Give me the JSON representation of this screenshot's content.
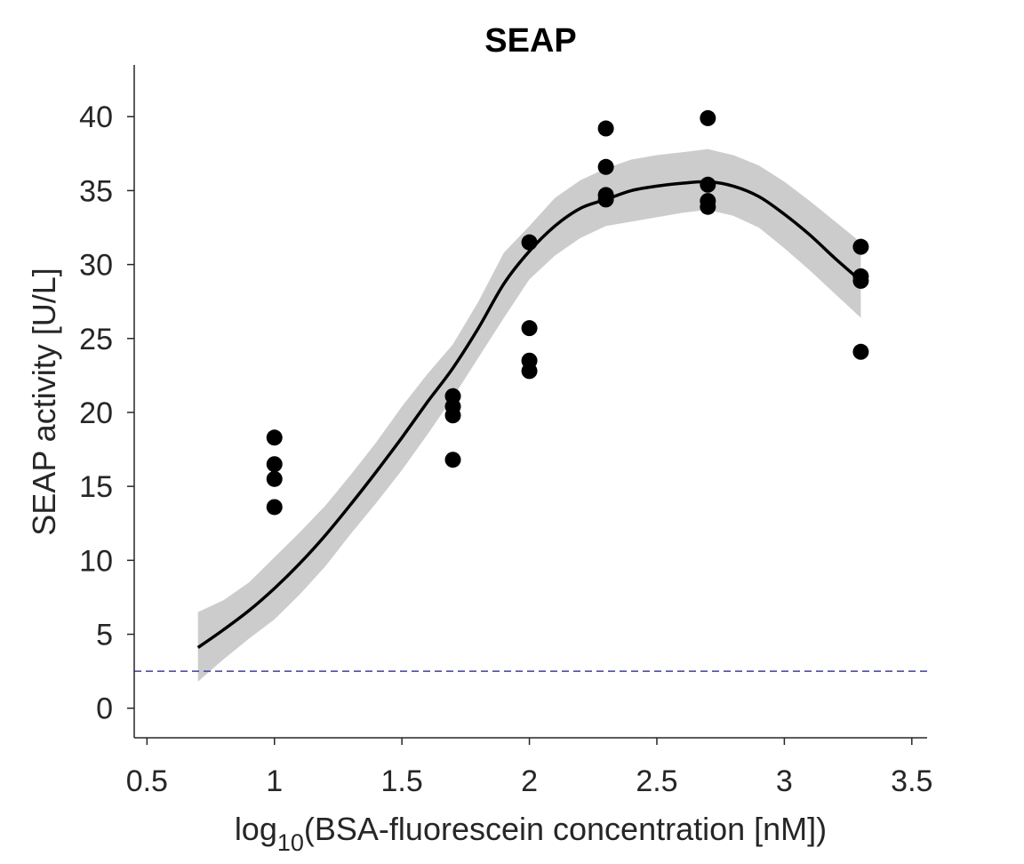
{
  "chart_data": {
    "type": "scatter",
    "title": "SEAP",
    "xlabel_prefix": "log",
    "xlabel_subscript": "10",
    "xlabel_suffix": "(BSA-fluorescein concentration [nM])",
    "ylabel": "SEAP activity [U/L]",
    "xlim": [
      0.45,
      3.56
    ],
    "ylim": [
      -2,
      43.5
    ],
    "xticks": [
      0.5,
      1,
      1.5,
      2,
      2.5,
      3,
      3.5
    ],
    "xtick_labels": [
      "0.5",
      "1",
      "1.5",
      "2",
      "2.5",
      "3",
      "3.5"
    ],
    "yticks": [
      0,
      5,
      10,
      15,
      20,
      25,
      30,
      35,
      40
    ],
    "ytick_labels": [
      "0",
      "5",
      "10",
      "15",
      "20",
      "25",
      "30",
      "35",
      "40"
    ],
    "grid": false,
    "series": [
      {
        "kind": "points",
        "color": "#000000",
        "points": [
          [
            1.0,
            18.3
          ],
          [
            1.0,
            16.5
          ],
          [
            1.0,
            15.5
          ],
          [
            1.0,
            13.6
          ],
          [
            1.7,
            21.1
          ],
          [
            1.7,
            20.4
          ],
          [
            1.7,
            19.8
          ],
          [
            1.7,
            16.8
          ],
          [
            2.0,
            31.5
          ],
          [
            2.0,
            25.7
          ],
          [
            2.0,
            23.5
          ],
          [
            2.0,
            22.8
          ],
          [
            2.3,
            39.2
          ],
          [
            2.3,
            36.6
          ],
          [
            2.3,
            34.7
          ],
          [
            2.3,
            34.4
          ],
          [
            2.7,
            39.9
          ],
          [
            2.7,
            35.4
          ],
          [
            2.7,
            34.3
          ],
          [
            2.7,
            33.9
          ],
          [
            3.3,
            31.2
          ],
          [
            3.3,
            29.2
          ],
          [
            3.3,
            28.9
          ],
          [
            3.3,
            24.1
          ]
        ]
      },
      {
        "kind": "fit-curve",
        "color": "#000000",
        "x": [
          0.7,
          0.8,
          0.9,
          1.0,
          1.1,
          1.2,
          1.3,
          1.4,
          1.5,
          1.6,
          1.7,
          1.8,
          1.9,
          2.0,
          2.1,
          2.2,
          2.3,
          2.4,
          2.5,
          2.6,
          2.7,
          2.8,
          2.9,
          3.0,
          3.1,
          3.2,
          3.3
        ],
        "y": [
          4.1,
          5.3,
          6.6,
          8.1,
          9.8,
          11.7,
          13.8,
          16.0,
          18.3,
          20.7,
          23.0,
          25.7,
          28.7,
          30.9,
          32.6,
          33.8,
          34.4,
          35.0,
          35.3,
          35.5,
          35.6,
          35.3,
          34.6,
          33.4,
          32.0,
          30.4,
          28.9
        ]
      },
      {
        "kind": "confidence-band",
        "color": "#cccccc",
        "x": [
          0.7,
          0.8,
          0.9,
          1.0,
          1.1,
          1.2,
          1.3,
          1.4,
          1.5,
          1.6,
          1.7,
          1.8,
          1.9,
          2.0,
          2.1,
          2.2,
          2.3,
          2.4,
          2.5,
          2.6,
          2.7,
          2.8,
          2.9,
          3.0,
          3.1,
          3.2,
          3.3
        ],
        "lower": [
          1.8,
          3.3,
          4.7,
          6.0,
          7.7,
          9.6,
          11.8,
          13.9,
          16.1,
          18.5,
          21.0,
          23.7,
          26.4,
          29.0,
          30.6,
          31.8,
          32.6,
          32.9,
          33.2,
          33.5,
          33.7,
          33.3,
          32.5,
          31.1,
          29.6,
          28.0,
          26.4
        ],
        "upper": [
          6.5,
          7.3,
          8.5,
          10.2,
          11.9,
          13.7,
          15.8,
          18.0,
          20.4,
          22.6,
          24.6,
          27.5,
          30.8,
          32.6,
          34.5,
          35.7,
          36.5,
          37.1,
          37.4,
          37.6,
          37.8,
          37.4,
          36.7,
          35.6,
          34.3,
          32.9,
          31.5
        ]
      },
      {
        "kind": "reference-line",
        "color": "#3b3bb5",
        "dash": true,
        "y": 2.5,
        "x_from": 0.45,
        "x_to": 3.56
      }
    ]
  }
}
